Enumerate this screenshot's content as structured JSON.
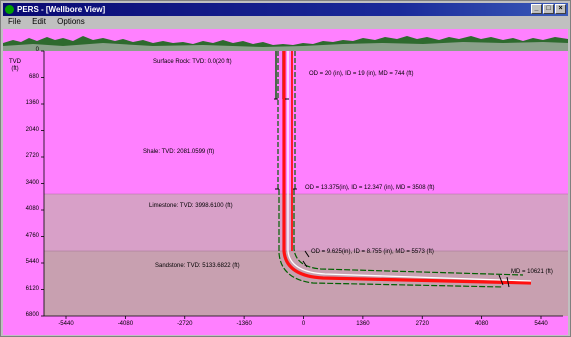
{
  "window": {
    "title": "PERS - [Wellbore View]",
    "min_glyph": "_",
    "max_glyph": "□",
    "close_glyph": "×"
  },
  "menu": {
    "items": [
      "File",
      "Edit",
      "Options"
    ]
  },
  "axes": {
    "y_title": "TVD",
    "y_unit": "(ft)",
    "y_ticks": [
      "0",
      "680",
      "1360",
      "2040",
      "2720",
      "3400",
      "4080",
      "4760",
      "5440",
      "6120",
      "6800"
    ],
    "x_ticks": [
      "-5440",
      "-4080",
      "-2720",
      "-1360",
      "0",
      "1360",
      "2720",
      "4080",
      "5440"
    ]
  },
  "formations": [
    {
      "name": "Surface Rock",
      "label": "Surface Rock: TVD: 0.0(20 ft)"
    },
    {
      "name": "Shale",
      "label": "Shale: TVD: 2081.0599 (ft)"
    },
    {
      "name": "Limestone",
      "label": "Limestone: TVD: 3998.6100 (ft)"
    },
    {
      "name": "Sandstone",
      "label": "Sandstone: TVD: 5133.6822 (ft)"
    }
  ],
  "casing_labels": [
    "OD = 20 (in), ID = 19 (in), MD = 744 (ft)",
    "OD = 13.375(in), ID = 12.347 (in), MD = 3508 (ft)",
    "OD = 9.625(in), ID = 8.755 (in), MD = 5573 (ft)"
  ],
  "md_label": "MD = 10621 (ft)",
  "colors": {
    "background": "#ff80ff",
    "limestone_zone": "#d8a0c8",
    "sandstone_zone": "#c8a0b0",
    "wellbore": "#ff1010",
    "casing": "#006000",
    "title_bar": "#0a0a72"
  }
}
